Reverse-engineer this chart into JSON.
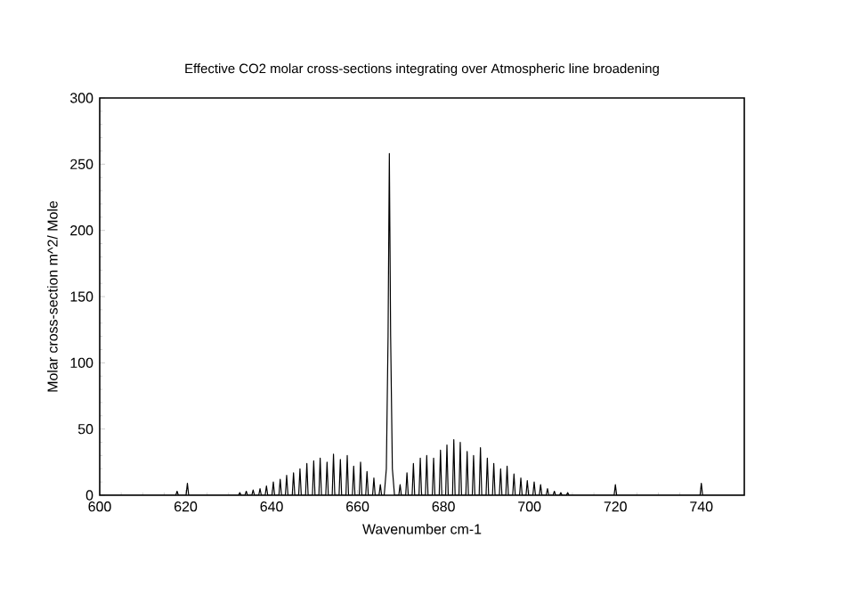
{
  "chart_data": {
    "type": "line",
    "title": "Effective CO2 molar cross-sections  integrating over Atmospheric line broadening",
    "xlabel": "Wavenumber cm-1",
    "ylabel": "Molar cross-section m^2/ Mole",
    "color": "#000000",
    "xlim": [
      600,
      750
    ],
    "ylim": [
      0,
      300
    ],
    "xticks": [
      600,
      620,
      640,
      660,
      680,
      700,
      720,
      740
    ],
    "yticks": [
      0,
      50,
      100,
      150,
      200,
      250,
      300
    ],
    "x": [
      600,
      617.7,
      618.0,
      618.3,
      620.1,
      620.4,
      620.7,
      632.3,
      632.6,
      632.9,
      633.8,
      634.1,
      634.4,
      635.4,
      635.7,
      636.0,
      637.0,
      637.3,
      637.6,
      638.5,
      638.8,
      639.1,
      640.1,
      640.4,
      640.7,
      641.7,
      642.0,
      642.3,
      643.2,
      643.5,
      643.8,
      644.8,
      645.1,
      645.4,
      646.3,
      646.6,
      646.9,
      647.9,
      648.2,
      648.5,
      649.5,
      649.8,
      650.1,
      651.0,
      651.3,
      651.6,
      652.6,
      652.9,
      653.2,
      654.1,
      654.4,
      654.7,
      655.7,
      656.0,
      656.3,
      657.3,
      657.6,
      657.9,
      658.8,
      659.1,
      659.4,
      660.4,
      660.7,
      661.0,
      661.9,
      662.2,
      662.5,
      663.5,
      663.8,
      664.1,
      665.0,
      665.3,
      665.6,
      666.2,
      666.7,
      667.1,
      667.4,
      667.7,
      668.1,
      668.6,
      669.6,
      669.9,
      670.2,
      671.2,
      671.5,
      671.8,
      672.7,
      673.0,
      673.3,
      674.3,
      674.6,
      674.9,
      675.8,
      676.1,
      676.4,
      677.4,
      677.7,
      678.0,
      679.0,
      679.3,
      679.6,
      680.5,
      680.8,
      681.1,
      682.1,
      682.4,
      682.7,
      683.6,
      683.9,
      684.2,
      685.2,
      685.5,
      685.8,
      686.7,
      687.0,
      687.3,
      688.3,
      688.6,
      688.9,
      689.9,
      690.2,
      690.5,
      691.4,
      691.7,
      692.0,
      693.0,
      693.3,
      693.6,
      694.5,
      694.8,
      695.1,
      696.1,
      696.4,
      696.7,
      697.7,
      698.0,
      698.3,
      699.2,
      699.5,
      699.8,
      700.8,
      701.1,
      701.4,
      702.3,
      702.6,
      702.9,
      703.9,
      704.2,
      704.5,
      705.5,
      705.8,
      706.1,
      707.0,
      707.3,
      707.6,
      708.6,
      708.9,
      709.2,
      719.7,
      720.0,
      720.3,
      739.7,
      740.0,
      740.3,
      750
    ],
    "values": [
      0,
      0,
      3,
      0,
      0,
      9,
      0,
      0,
      2,
      0,
      0,
      3,
      0,
      0,
      4,
      0,
      0,
      5,
      0,
      0,
      7,
      0,
      0,
      10,
      0,
      0,
      12,
      0,
      0,
      15,
      0,
      0,
      17,
      0,
      0,
      20,
      0,
      0,
      24,
      0,
      0,
      26,
      0,
      0,
      28,
      0,
      0,
      25,
      0,
      0,
      31,
      0,
      0,
      27,
      0,
      0,
      30,
      0,
      0,
      22,
      0,
      0,
      25,
      0,
      0,
      18,
      0,
      0,
      13,
      0,
      0,
      8,
      0,
      0,
      20,
      120,
      258,
      120,
      20,
      0,
      0,
      8,
      0,
      0,
      17,
      0,
      0,
      24,
      0,
      0,
      28,
      0,
      0,
      30,
      0,
      0,
      28,
      0,
      0,
      34,
      0,
      0,
      38,
      0,
      0,
      42,
      0,
      0,
      40,
      0,
      0,
      33,
      0,
      0,
      30,
      0,
      0,
      36,
      0,
      0,
      28,
      0,
      0,
      24,
      0,
      0,
      20,
      0,
      0,
      22,
      0,
      0,
      16,
      0,
      0,
      13,
      0,
      0,
      11,
      0,
      0,
      10,
      0,
      0,
      8,
      0,
      0,
      5,
      0,
      0,
      3,
      0,
      0,
      2,
      0,
      0,
      2,
      0,
      0,
      8,
      0,
      0,
      9,
      0,
      0
    ]
  }
}
